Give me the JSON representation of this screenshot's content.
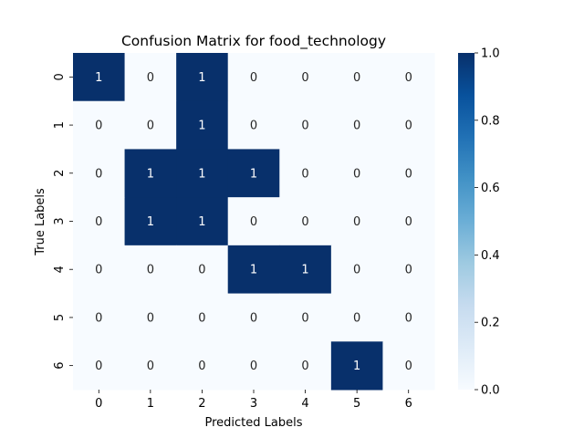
{
  "chart_data": {
    "type": "heatmap",
    "title": "Confusion Matrix for food_technology",
    "xlabel": "Predicted Labels",
    "ylabel": "True Labels",
    "x_categories": [
      "0",
      "1",
      "2",
      "3",
      "4",
      "5",
      "6"
    ],
    "y_categories": [
      "0",
      "1",
      "2",
      "3",
      "4",
      "5",
      "6"
    ],
    "values": [
      [
        1,
        0,
        1,
        0,
        0,
        0,
        0
      ],
      [
        0,
        0,
        1,
        0,
        0,
        0,
        0
      ],
      [
        0,
        1,
        1,
        1,
        0,
        0,
        0
      ],
      [
        0,
        1,
        1,
        0,
        0,
        0,
        0
      ],
      [
        0,
        0,
        0,
        1,
        1,
        0,
        0
      ],
      [
        0,
        0,
        0,
        0,
        0,
        0,
        0
      ],
      [
        0,
        0,
        0,
        0,
        0,
        1,
        0
      ]
    ],
    "colorbar": {
      "range": [
        0.0,
        1.0
      ],
      "ticks": [
        "0.0",
        "0.2",
        "0.4",
        "0.6",
        "0.8",
        "1.0"
      ]
    },
    "colormap": "Blues",
    "low_color": "#f7fbff",
    "high_color": "#08306b",
    "annotations": true,
    "grid": false,
    "colorbar_placement": "right"
  }
}
